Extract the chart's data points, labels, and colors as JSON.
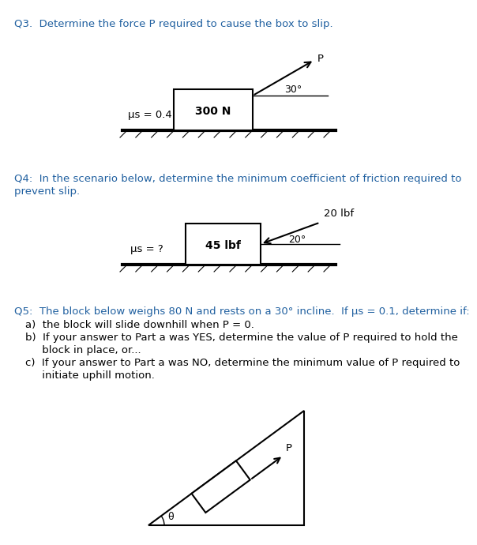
{
  "bg_color": "#ffffff",
  "q3_text": "Q3.  Determine the force P required to cause the box to slip.",
  "q3_mu": "μs = 0.4",
  "q3_box_label": "300 N",
  "q3_angle_label": "30°",
  "q3_P_label": "P",
  "q4_text1": "Q4:  In the scenario below, determine the minimum coefficient of friction required to",
  "q4_text2": "prevent slip.",
  "q4_mu": "μs = ?",
  "q4_box_label": "45 lbf",
  "q4_angle_label": "20°",
  "q4_force_label": "20 lbf",
  "q5_text1": "Q5:  The block below weighs 80 N and rests on a 30° incline.  If μs = 0.1, determine if:",
  "q5_a": "a)  the block will slide downhill when P = 0.",
  "q5_b1": "b)  If your answer to Part a was YES, determine the value of P required to hold the",
  "q5_b2": "     block in place, or...",
  "q5_c1": "c)  If your answer to Part a was NO, determine the minimum value of P required to",
  "q5_c2": "     initiate uphill motion.",
  "q5_P_label": "P",
  "q5_theta_label": "θ",
  "blue_color": "#2060a0",
  "black_color": "#000000",
  "font_size_title": 9.5,
  "font_size_body": 9.5
}
